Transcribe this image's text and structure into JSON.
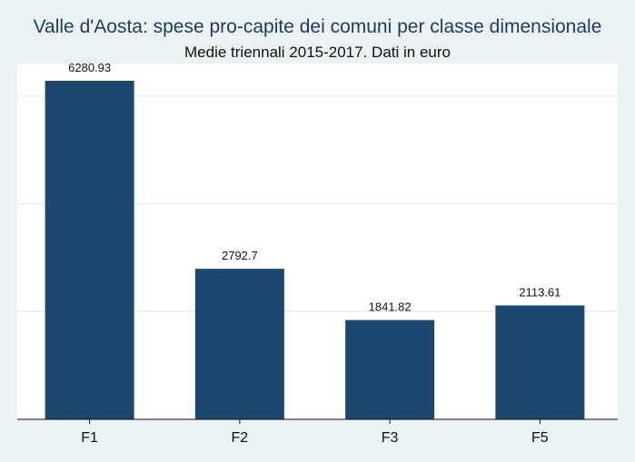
{
  "chart_data": {
    "type": "bar",
    "title": "Valle d'Aosta: spese pro-capite dei comuni per classe dimensionale",
    "subtitle": "Medie triennali 2015-2017. Dati in euro",
    "categories": [
      "F1",
      "F2",
      "F3",
      "F5"
    ],
    "values": [
      6280.93,
      2792.7,
      1841.82,
      2113.61
    ],
    "value_labels": [
      "6280.93",
      "2792.7",
      "1841.82",
      "2113.61"
    ],
    "ylim": [
      0,
      6600
    ],
    "gridlines": [
      2000,
      4000,
      6000
    ],
    "grid": true,
    "colors": {
      "bar": "#1c4870",
      "background": "#eaf2f3",
      "plot": "#ffffff",
      "grid": "#e6eeef",
      "axis": "#111111"
    }
  }
}
